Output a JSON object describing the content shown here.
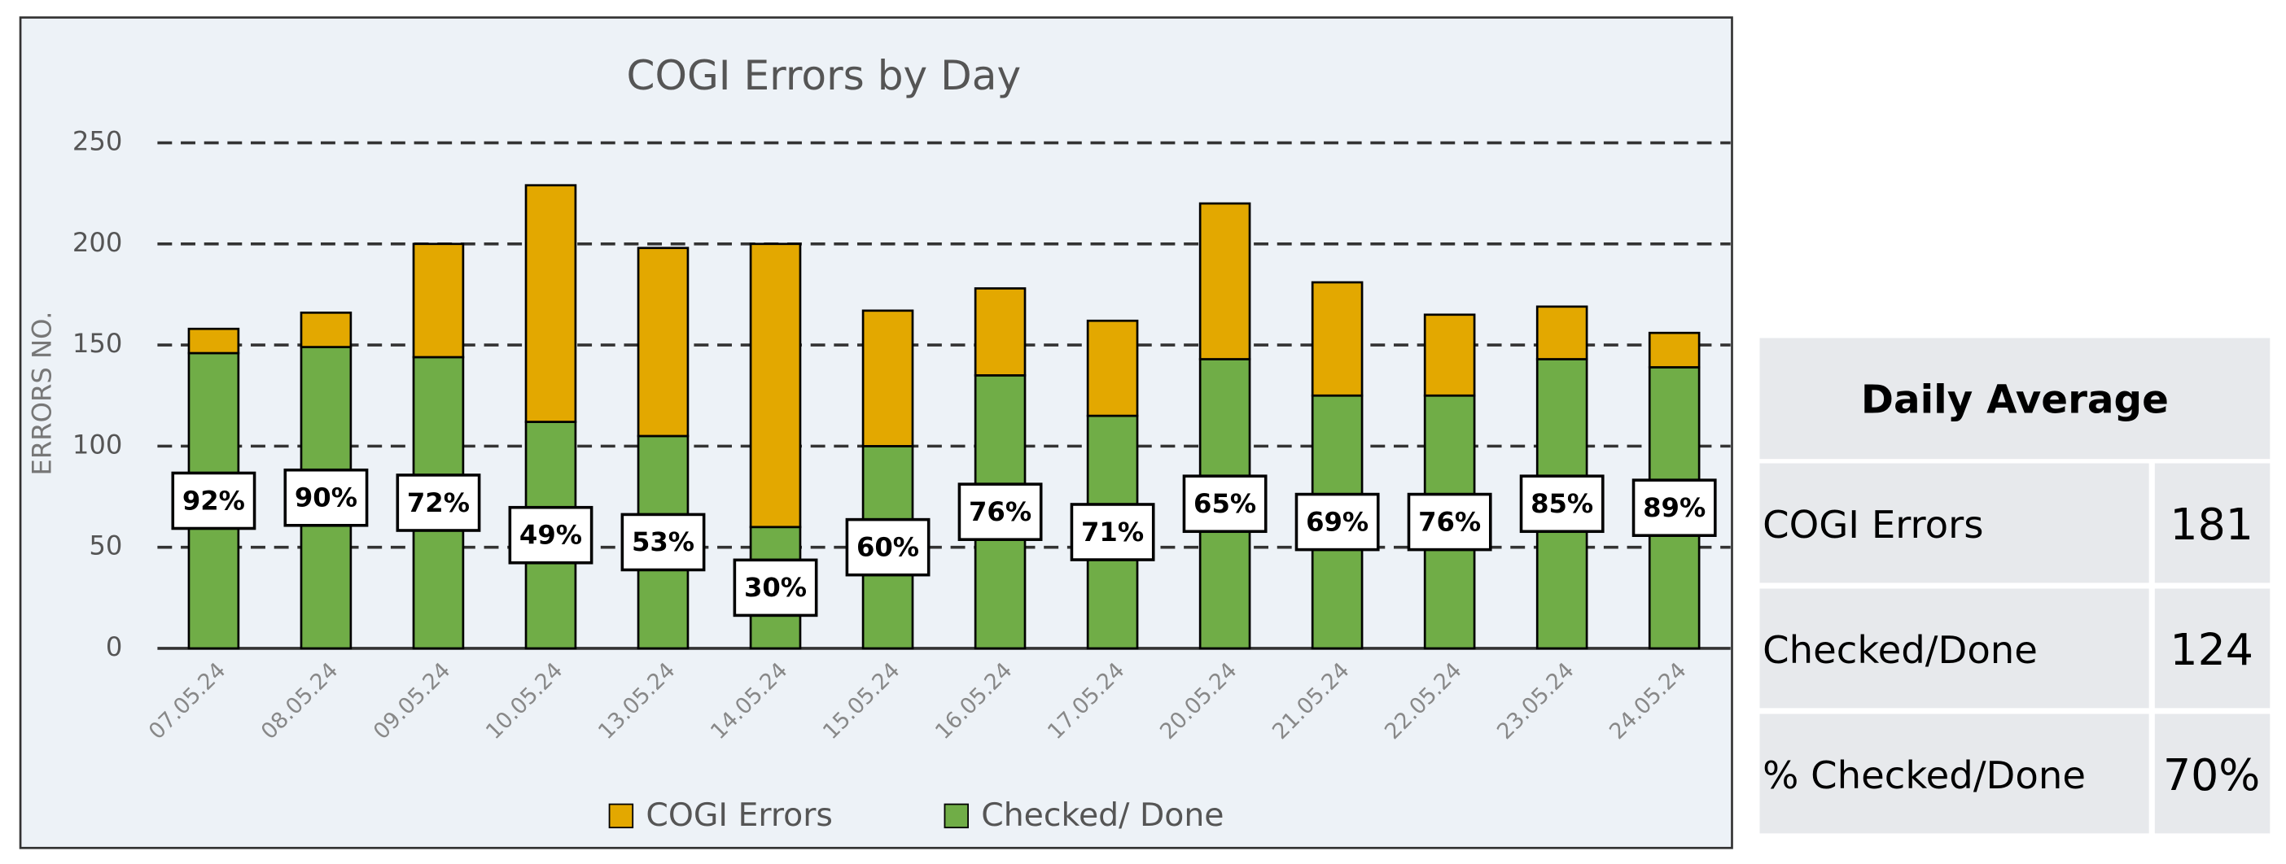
{
  "chart_data": {
    "type": "stacked_bar",
    "title": "COGI Errors by Day",
    "y_label": "ERRORS NO.",
    "categories": [
      "07.05.24",
      "08.05.24",
      "09.05.24",
      "10.05.24",
      "13.05.24",
      "14.05.24",
      "15.05.24",
      "16.05.24",
      "17.05.24",
      "20.05.24",
      "21.05.24",
      "22.05.24",
      "23.05.24",
      "24.05.24"
    ],
    "series": [
      {
        "name": "Checked/ Done",
        "color": "#70ad47",
        "values": [
          146,
          149,
          144,
          112,
          105,
          60,
          100,
          135,
          115,
          143,
          125,
          125,
          143,
          139
        ]
      },
      {
        "name": "COGI Errors",
        "color": "#e3a800",
        "values": [
          12,
          17,
          56,
          117,
          93,
          140,
          67,
          43,
          47,
          77,
          56,
          40,
          26,
          17
        ]
      }
    ],
    "percent_labels": [
      "92%",
      "90%",
      "72%",
      "49%",
      "53%",
      "30%",
      "60%",
      "76%",
      "71%",
      "65%",
      "69%",
      "76%",
      "85%",
      "89%"
    ],
    "legend_order": [
      1,
      0
    ],
    "ylim": [
      0,
      250
    ],
    "yticks": [
      0,
      50,
      100,
      150,
      200,
      250
    ],
    "grid": true
  },
  "table": {
    "title": "Daily Average",
    "rows": [
      [
        "COGI Errors",
        "181"
      ],
      [
        "Checked/Done",
        "124"
      ],
      [
        "% Checked/Done",
        "70%"
      ]
    ]
  }
}
